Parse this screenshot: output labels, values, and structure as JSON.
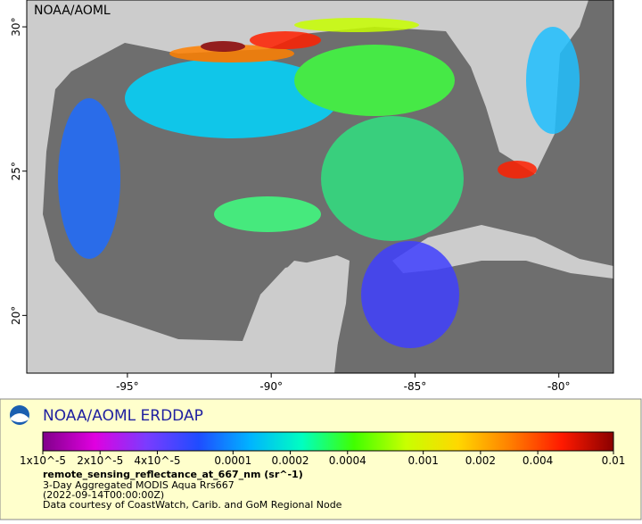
{
  "map": {
    "label": "NOAA/AOML",
    "xlim": [
      -98.5,
      -78.1
    ],
    "ylim": [
      18.0,
      30.93
    ],
    "xticks": [
      {
        "value": -95,
        "label": "-95°"
      },
      {
        "value": -90,
        "label": "-90°"
      },
      {
        "value": -85,
        "label": "-85°"
      },
      {
        "value": -80,
        "label": "-80°"
      }
    ],
    "yticks": [
      {
        "value": 20,
        "label": "20°"
      },
      {
        "value": 25,
        "label": "25°"
      },
      {
        "value": 30,
        "label": "30°"
      }
    ]
  },
  "legend": {
    "title": "NOAA/AOML ERDDAP",
    "colorbar": {
      "range": [
        1e-05,
        0.01
      ],
      "log": true,
      "colors": [
        "#80008a",
        "#e000e0",
        "#7a3cff",
        "#1f4cff",
        "#00b4ff",
        "#00ffc0",
        "#40ff00",
        "#c8ff00",
        "#ffd800",
        "#ff8000",
        "#ff1a00",
        "#8a0000"
      ],
      "ticks": [
        {
          "value": 1e-05,
          "label": "1x10^-5"
        },
        {
          "value": 2e-05,
          "label": "2x10^-5"
        },
        {
          "value": 4e-05,
          "label": "4x10^-5"
        },
        0.0001,
        0.0002,
        0.0004,
        0.001,
        0.002,
        0.004,
        0.01
      ]
    },
    "variable": "remote_sensing_reflectance_at_667_nm (sr^-1)",
    "lines": [
      "3-Day Aggregated MODIS Aqua Rrs667",
      "(2022-09-14T00:00:00Z)",
      "Data courtesy of CoastWatch, Carib. and GoM Regional Node"
    ]
  }
}
